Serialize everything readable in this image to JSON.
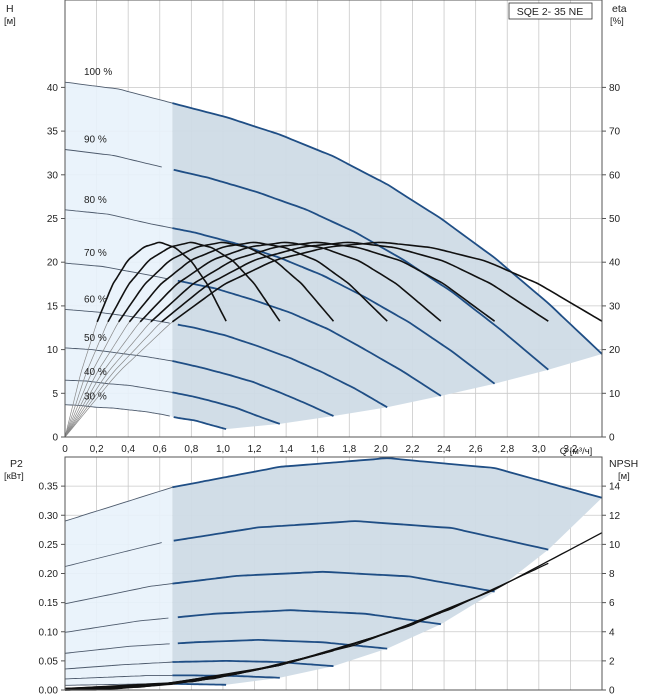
{
  "chart_data": [
    {
      "type": "line",
      "title": "SQE 2- 35 NE",
      "xlabel": "Q [м³/ч]",
      "ylabel_left": "H",
      "ylabel_left_unit": "[м]",
      "ylabel_right": "eta",
      "ylabel_right_unit": "[%]",
      "x_ticks": [
        "0",
        "0,2",
        "0,4",
        "0,6",
        "0,8",
        "1,0",
        "1,2",
        "1,4",
        "1,6",
        "1,8",
        "2,0",
        "2,2",
        "2,4",
        "2,6",
        "2,8",
        "3,0",
        "3,2"
      ],
      "y_left_ticks": [
        "0",
        "5",
        "10",
        "15",
        "20",
        "25",
        "30",
        "35",
        "40"
      ],
      "y_right_ticks": [
        "0",
        "10",
        "20",
        "30",
        "40",
        "50",
        "60",
        "70",
        "80"
      ],
      "xlim": [
        0,
        3.4
      ],
      "ylim_left": [
        0,
        50
      ],
      "ylim_right": [
        0,
        100
      ],
      "grid": true,
      "speed_labels": [
        "100 %",
        "90 %",
        "80 %",
        "70 %",
        "60 %",
        "50 %",
        "40 %",
        "30 %"
      ],
      "head_curves": [
        {
          "name": "100 %",
          "x": [
            0,
            0.34,
            0.68,
            1.02,
            1.36,
            1.7,
            2.04,
            2.38,
            2.72,
            3.06,
            3.4
          ],
          "y": [
            40.6,
            39.8,
            38.2,
            36.6,
            34.6,
            32.1,
            28.9,
            25.0,
            20.5,
            15.3,
            9.5
          ]
        },
        {
          "name": "90 %",
          "x": [
            0,
            0.31,
            0.61,
            0.92,
            1.22,
            1.53,
            1.84,
            2.14,
            2.45,
            2.75,
            3.06
          ],
          "y": [
            32.9,
            32.2,
            30.9,
            29.6,
            28.0,
            26.0,
            23.4,
            20.3,
            16.6,
            12.4,
            7.7
          ]
        },
        {
          "name": "80 %",
          "x": [
            0,
            0.27,
            0.54,
            0.82,
            1.09,
            1.36,
            1.63,
            1.9,
            2.18,
            2.45,
            2.72
          ],
          "y": [
            26.0,
            25.5,
            24.4,
            23.4,
            22.1,
            20.5,
            18.5,
            16.0,
            13.1,
            9.8,
            6.1
          ]
        },
        {
          "name": "70 %",
          "x": [
            0,
            0.24,
            0.48,
            0.71,
            0.95,
            1.19,
            1.43,
            1.67,
            1.9,
            2.14,
            2.38
          ],
          "y": [
            19.9,
            19.5,
            18.7,
            17.9,
            17.0,
            15.7,
            14.2,
            12.3,
            10.0,
            7.5,
            4.7
          ]
        },
        {
          "name": "60 %",
          "x": [
            0,
            0.2,
            0.41,
            0.61,
            0.82,
            1.02,
            1.22,
            1.43,
            1.63,
            1.84,
            2.04
          ],
          "y": [
            14.6,
            14.3,
            13.8,
            13.2,
            12.5,
            11.6,
            10.4,
            9.0,
            7.4,
            5.5,
            3.4
          ]
        },
        {
          "name": "50 %",
          "x": [
            0,
            0.17,
            0.34,
            0.51,
            0.68,
            0.85,
            1.02,
            1.19,
            1.36,
            1.53,
            1.7
          ],
          "y": [
            10.2,
            10.0,
            9.6,
            9.2,
            8.7,
            8.0,
            7.2,
            6.3,
            5.1,
            3.8,
            2.4
          ]
        },
        {
          "name": "40 %",
          "x": [
            0,
            0.14,
            0.27,
            0.41,
            0.54,
            0.68,
            0.82,
            0.95,
            1.09,
            1.22,
            1.36
          ],
          "y": [
            6.5,
            6.4,
            6.1,
            5.9,
            5.5,
            5.1,
            4.6,
            4.0,
            3.3,
            2.4,
            1.5
          ]
        },
        {
          "name": "30 %",
          "x": [
            0,
            0.1,
            0.2,
            0.31,
            0.41,
            0.51,
            0.61,
            0.71,
            0.82,
            0.92,
            1.02
          ],
          "y": [
            3.7,
            3.6,
            3.4,
            3.3,
            3.1,
            2.9,
            2.6,
            2.2,
            1.9,
            1.4,
            0.9
          ]
        }
      ],
      "eta_curves": [
        {
          "x": [
            0,
            0.33,
            0.67,
            1.0,
            1.33,
            1.67,
            2.0,
            2.33,
            2.67,
            3.0,
            3.4
          ],
          "y": [
            0,
            14.5,
            26.1,
            34.8,
            40.5,
            43.5,
            44.6,
            43.3,
            40.2,
            35.0,
            26.5
          ]
        },
        {
          "x": [
            0,
            0.27,
            0.54,
            0.81,
            1.08,
            1.35,
            1.62,
            1.89,
            2.16,
            2.43,
            2.72
          ],
          "y": [
            0,
            14.5,
            26.1,
            34.8,
            40.5,
            43.5,
            44.6,
            43.3,
            40.2,
            35.0,
            26.5
          ]
        },
        {
          "x": [
            0,
            0.2,
            0.4,
            0.6,
            0.8,
            1.0,
            1.2,
            1.4,
            1.6,
            1.8,
            2.04
          ],
          "y": [
            0,
            14.5,
            26.1,
            34.8,
            40.5,
            43.5,
            44.6,
            43.3,
            40.2,
            35.0,
            26.5
          ]
        },
        {
          "x": [
            0,
            0.14,
            0.27,
            0.41,
            0.54,
            0.68,
            0.82,
            0.95,
            1.09,
            1.22,
            1.36
          ],
          "y": [
            0,
            14.5,
            26.1,
            34.8,
            40.5,
            43.5,
            44.6,
            43.3,
            40.2,
            35.0,
            26.5
          ]
        }
      ]
    },
    {
      "type": "line",
      "ylabel_left": "P2",
      "ylabel_left_unit": "[кВт]",
      "ylabel_right": "NPSH",
      "ylabel_right_unit": "[м]",
      "y_left_ticks": [
        "0.00",
        "0.05",
        "0.10",
        "0.15",
        "0.20",
        "0.25",
        "0.30",
        "0.35"
      ],
      "y_right_ticks": [
        "0",
        "2",
        "4",
        "6",
        "8",
        "10",
        "12",
        "14"
      ],
      "xlim": [
        0,
        3.4
      ],
      "ylim_left": [
        0,
        0.4
      ],
      "ylim_right": [
        0,
        16
      ],
      "grid": true,
      "power_curves": [
        {
          "name": "100 %",
          "x": [
            0,
            0.68,
            1.36,
            2.04,
            2.72,
            3.4
          ],
          "y": [
            0.29,
            0.348,
            0.383,
            0.398,
            0.381,
            0.33
          ]
        },
        {
          "name": "90 %",
          "x": [
            0,
            0.61,
            1.22,
            1.84,
            2.45,
            3.06
          ],
          "y": [
            0.212,
            0.253,
            0.279,
            0.29,
            0.278,
            0.241
          ]
        },
        {
          "name": "80 %",
          "x": [
            0,
            0.54,
            1.09,
            1.63,
            2.18,
            2.72
          ],
          "y": [
            0.148,
            0.178,
            0.196,
            0.203,
            0.195,
            0.169
          ]
        },
        {
          "name": "70 %",
          "x": [
            0,
            0.48,
            0.95,
            1.43,
            1.9,
            2.38
          ],
          "y": [
            0.099,
            0.119,
            0.131,
            0.137,
            0.131,
            0.113
          ]
        },
        {
          "name": "60 %",
          "x": [
            0,
            0.41,
            0.82,
            1.22,
            1.63,
            2.04
          ],
          "y": [
            0.063,
            0.075,
            0.082,
            0.086,
            0.082,
            0.071
          ]
        },
        {
          "name": "50 %",
          "x": [
            0,
            0.34,
            0.68,
            1.02,
            1.36,
            1.7
          ],
          "y": [
            0.036,
            0.043,
            0.048,
            0.05,
            0.048,
            0.041
          ]
        },
        {
          "name": "40 %",
          "x": [
            0,
            0.27,
            0.54,
            0.82,
            1.09,
            1.36
          ],
          "y": [
            0.019,
            0.022,
            0.025,
            0.025,
            0.024,
            0.021
          ]
        },
        {
          "name": "30 %",
          "x": [
            0,
            0.2,
            0.41,
            0.61,
            0.82,
            1.02
          ],
          "y": [
            0.008,
            0.009,
            0.01,
            0.011,
            0.01,
            0.009
          ]
        }
      ],
      "npsh_curves": [
        {
          "x": [
            0,
            0.68,
            1.36,
            2.04,
            2.72,
            3.4
          ],
          "y": [
            0.1,
            0.5,
            1.7,
            3.9,
            6.9,
            10.8
          ]
        },
        {
          "x": [
            0,
            0.61,
            1.22,
            1.84,
            2.45,
            3.06
          ],
          "y": [
            0.1,
            0.4,
            1.4,
            3.1,
            5.6,
            8.7
          ]
        },
        {
          "x": [
            0,
            0.54,
            1.09,
            1.63,
            2.18,
            2.72
          ],
          "y": [
            0.1,
            0.3,
            1.1,
            2.5,
            4.4,
            6.9
          ]
        },
        {
          "x": [
            0,
            0.48,
            0.95,
            1.43,
            1.9,
            2.38
          ],
          "y": [
            0.1,
            0.2,
            0.8,
            1.9,
            3.4,
            5.3
          ]
        },
        {
          "x": [
            0,
            0.41,
            0.82,
            1.22,
            1.63,
            2.04
          ],
          "y": [
            0.0,
            0.2,
            0.6,
            1.4,
            2.5,
            3.9
          ]
        },
        {
          "x": [
            0,
            0.34,
            0.68,
            1.02,
            1.36,
            1.7
          ],
          "y": [
            0.0,
            0.1,
            0.4,
            1.0,
            1.7,
            2.7
          ]
        },
        {
          "x": [
            0,
            0.27,
            0.54,
            0.82,
            1.09,
            1.36
          ],
          "y": [
            0.0,
            0.1,
            0.3,
            0.6,
            1.1,
            1.7
          ]
        },
        {
          "x": [
            0,
            0.2,
            0.41,
            0.61,
            0.82,
            1.02
          ],
          "y": [
            0.0,
            0.0,
            0.2,
            0.4,
            0.6,
            1.0
          ]
        }
      ]
    }
  ],
  "colors": {
    "grid": "#c9c9c9",
    "axis": "#555555",
    "region_dark": "#cfdbe6",
    "region_light": "#e8f2fb",
    "pump_curve": "#1f4e85",
    "thin_curve": "#4d5a6c",
    "eta_curve": "#111111",
    "npsh_curve": "#111111"
  }
}
